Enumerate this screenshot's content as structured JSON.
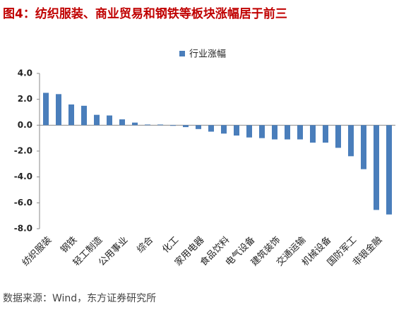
{
  "chart_data": {
    "type": "bar",
    "title": "图4：纺织服装、商业贸易和钢铁等板块涨幅居于前三",
    "source": "数据来源：Wind，东方证券研究所",
    "categories": [
      "纺织服装",
      null,
      "钢铁",
      null,
      "轻工制造",
      null,
      "公用事业",
      null,
      "综合",
      null,
      "化工",
      null,
      "家用电器",
      null,
      "食品饮料",
      null,
      "电气设备",
      null,
      "建筑装饰",
      null,
      "交通运输",
      null,
      "机械设备",
      null,
      "国防军工",
      null,
      "非银金融",
      null
    ],
    "series": [
      {
        "name": "行业涨幅",
        "color": "#4a7ebb",
        "values": [
          2.5,
          2.4,
          1.6,
          1.5,
          0.8,
          0.75,
          0.45,
          0.2,
          0.05,
          0.05,
          -0.05,
          -0.15,
          -0.3,
          -0.5,
          -0.65,
          -0.8,
          -0.95,
          -1.0,
          -1.1,
          -1.1,
          -1.1,
          -1.35,
          -1.35,
          -1.75,
          -2.4,
          -3.4,
          -6.55,
          -6.9
        ]
      }
    ],
    "ylim": [
      -8,
      4
    ],
    "yticks": [
      {
        "value": 4,
        "label": "4.0"
      },
      {
        "value": 2,
        "label": "2.0"
      },
      {
        "value": 0,
        "label": "0.0"
      },
      {
        "value": -2,
        "label": "-2.0"
      },
      {
        "value": -4,
        "label": "-4.0"
      },
      {
        "value": -6,
        "label": "-6.0"
      },
      {
        "value": -8,
        "label": "-8.0"
      }
    ],
    "legend": "top"
  }
}
